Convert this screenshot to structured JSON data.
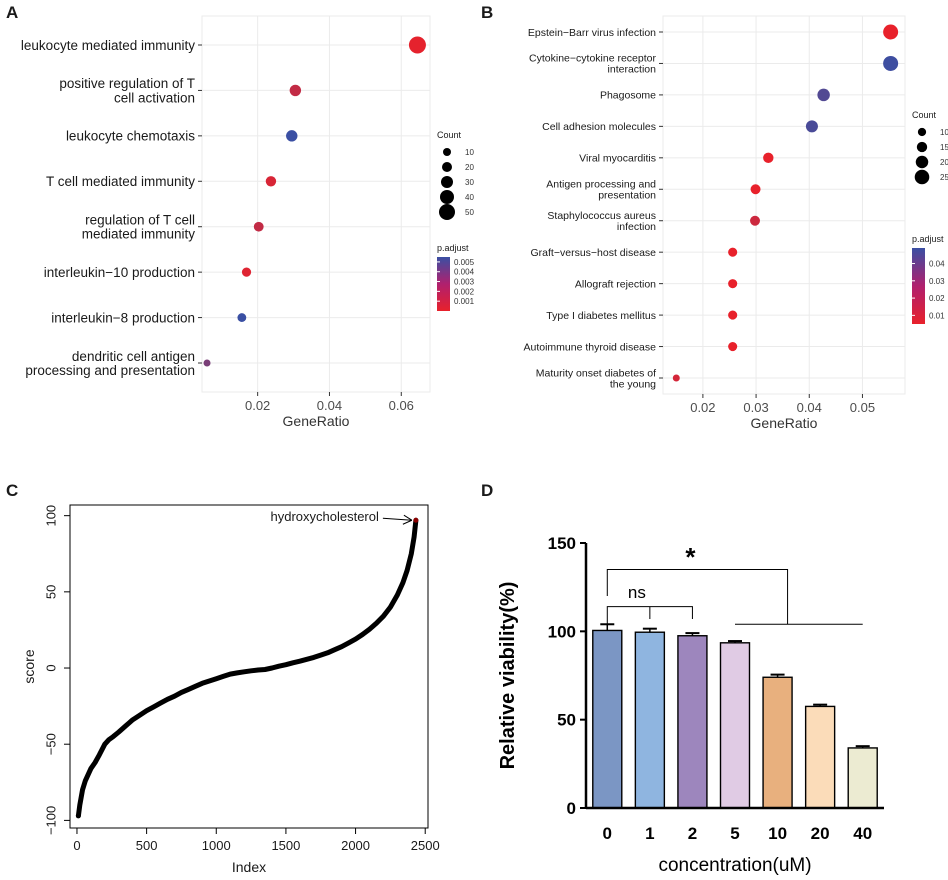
{
  "panels": {
    "A": {
      "label": "A"
    },
    "B": {
      "label": "B"
    },
    "C": {
      "label": "C"
    },
    "D": {
      "label": "D"
    }
  },
  "colors": {
    "grid": "#ebebeb",
    "low_padj": "#e8212b",
    "high_padj": "#3a4fa3",
    "text": "#1a1a1a",
    "bar_colors": [
      "#7b96c4",
      "#8fb5e0",
      "#9d86bd",
      "#e0cbe4",
      "#e8b07e",
      "#fbdcb9",
      "#ecebd2"
    ]
  },
  "chart_data": [
    {
      "panel": "A",
      "type": "scatter",
      "subtype": "dotplot",
      "xlabel": "GeneRatio",
      "xlim": [
        0.0045,
        0.068
      ],
      "xticks": [
        0.02,
        0.04,
        0.06
      ],
      "xtick_labels": [
        "0.02",
        "0.04",
        "0.06"
      ],
      "categories": [
        "leukocyte mediated immunity",
        "positive regulation of T cell activation",
        "leukocyte chemotaxis",
        "T cell mediated immunity",
        "regulation of T cell mediated immunity",
        "interleukin−10 production",
        "interleukin−8 production",
        "dendritic cell antigen processing and presentation"
      ],
      "category_lines": [
        [
          "leukocyte mediated immunity"
        ],
        [
          "positive regulation of T",
          "cell activation"
        ],
        [
          "leukocyte chemotaxis"
        ],
        [
          "T cell mediated immunity"
        ],
        [
          "regulation of T cell",
          "mediated immunity"
        ],
        [
          "interleukin−10 production"
        ],
        [
          "interleukin−8 production"
        ],
        [
          "dendritic cell antigen",
          "processing and presentation"
        ]
      ],
      "gene_ratio": [
        0.0645,
        0.0305,
        0.0295,
        0.0237,
        0.0203,
        0.0169,
        0.0156,
        0.0059
      ],
      "count": [
        55,
        27,
        27,
        22,
        19,
        16,
        14,
        5
      ],
      "p_adjust": [
        0.0001,
        0.0012,
        0.0055,
        0.0005,
        0.0012,
        0.0003,
        0.0055,
        0.0035
      ],
      "size_legend": {
        "title": "Count",
        "values": [
          10,
          20,
          30,
          40,
          50
        ],
        "labels": [
          "10",
          "20",
          "30",
          "40",
          "50"
        ]
      },
      "color_legend": {
        "title": "p.adjust",
        "range": [
          0.0,
          0.0055
        ],
        "values": [
          0.005,
          0.004,
          0.003,
          0.002,
          0.001
        ],
        "labels": [
          "0.005",
          "0.004",
          "0.003",
          "0.002",
          "0.001"
        ]
      }
    },
    {
      "panel": "B",
      "type": "scatter",
      "subtype": "dotplot",
      "xlabel": "GeneRatio",
      "xlim": [
        0.0125,
        0.058
      ],
      "xticks": [
        0.02,
        0.03,
        0.04,
        0.05
      ],
      "xtick_labels": [
        "0.02",
        "0.03",
        "0.04",
        "0.05"
      ],
      "categories": [
        "Epstein−Barr virus infection",
        "Cytokine−cytokine receptor interaction",
        "Phagosome",
        "Cell adhesion molecules",
        "Viral myocarditis",
        "Antigen processing and presentation",
        "Staphylococcus aureus infection",
        "Graft−versus−host disease",
        "Allograft rejection",
        "Type I diabetes mellitus",
        "Autoimmune thyroid disease",
        "Maturity onset diabetes of the young"
      ],
      "category_lines": [
        [
          "Epstein−Barr virus infection"
        ],
        [
          "Cytokine−cytokine receptor",
          "interaction"
        ],
        [
          "Phagosome"
        ],
        [
          "Cell adhesion molecules"
        ],
        [
          "Viral myocarditis"
        ],
        [
          "Antigen processing and",
          "presentation"
        ],
        [
          "Staphylococcus aureus",
          "infection"
        ],
        [
          "Graft−versus−host disease"
        ],
        [
          "Allograft rejection"
        ],
        [
          "Type I diabetes mellitus"
        ],
        [
          "Autoimmune thyroid disease"
        ],
        [
          "Maturity onset diabetes of",
          "the young"
        ]
      ],
      "gene_ratio": [
        0.0553,
        0.0553,
        0.0427,
        0.0405,
        0.0323,
        0.0299,
        0.0298,
        0.0256,
        0.0256,
        0.0256,
        0.0256,
        0.015
      ],
      "count": [
        26,
        26,
        20,
        19,
        15,
        14,
        14,
        12,
        12,
        12,
        12,
        7
      ],
      "p_adjust": [
        0.002,
        0.048,
        0.043,
        0.045,
        0.004,
        0.003,
        0.012,
        0.001,
        0.001,
        0.001,
        0.002,
        0.01
      ],
      "size_legend": {
        "title": "Count",
        "values": [
          10,
          15,
          20,
          25
        ],
        "labels": [
          "10",
          "15",
          "20",
          "25"
        ]
      },
      "color_legend": {
        "title": "p.adjust",
        "range": [
          0.005,
          0.049
        ],
        "values": [
          0.04,
          0.03,
          0.02,
          0.01
        ],
        "labels": [
          "0.04",
          "0.03",
          "0.02",
          "0.01"
        ]
      }
    },
    {
      "panel": "C",
      "type": "line",
      "xlabel": "Index",
      "ylabel": "score",
      "xlim": [
        -50,
        2520
      ],
      "ylim": [
        -105,
        107
      ],
      "xticks": [
        0,
        500,
        1000,
        1500,
        2000,
        2500
      ],
      "xtick_labels": [
        "0",
        "500",
        "1000",
        "1500",
        "2000",
        "2500"
      ],
      "yticks": [
        -100,
        -50,
        0,
        50,
        100
      ],
      "ytick_labels": [
        "−100",
        "−50",
        "0",
        "50",
        "100"
      ],
      "x": [
        10,
        20,
        40,
        60,
        80,
        100,
        130,
        160,
        200,
        230,
        260,
        300,
        350,
        400,
        450,
        500,
        550,
        600,
        650,
        700,
        750,
        800,
        850,
        900,
        950,
        1000,
        1050,
        1100,
        1150,
        1200,
        1250,
        1300,
        1350,
        1400,
        1450,
        1500,
        1550,
        1600,
        1650,
        1700,
        1750,
        1800,
        1850,
        1900,
        1950,
        2000,
        2050,
        2100,
        2150,
        2200,
        2250,
        2300,
        2340,
        2370,
        2400,
        2420,
        2433
      ],
      "y": [
        -97,
        -90,
        -80,
        -74,
        -70,
        -66,
        -62,
        -57,
        -50,
        -47,
        -45,
        -42,
        -38,
        -34,
        -31,
        -28,
        -25.5,
        -23,
        -20.5,
        -18.5,
        -16,
        -14,
        -12,
        -10,
        -8.5,
        -7,
        -5.5,
        -4,
        -3.2,
        -2.5,
        -1.8,
        -1.3,
        -1,
        0,
        1.2,
        2.2,
        3.4,
        4.5,
        5.7,
        7,
        8.5,
        10,
        12,
        14,
        16.5,
        19,
        22,
        25.5,
        29.5,
        34,
        40,
        48,
        56,
        64,
        75,
        86,
        97
      ],
      "annotation": {
        "text": "hydroxycholesterol",
        "x": 2433,
        "y": 97
      }
    },
    {
      "panel": "D",
      "type": "bar",
      "xlabel": "concentration(uM)",
      "ylabel": "Relative viability(%)",
      "ylim": [
        0,
        150
      ],
      "yticks": [
        0,
        50,
        100,
        150
      ],
      "ytick_labels": [
        "0",
        "50",
        "100",
        "150"
      ],
      "categories": [
        "0",
        "1",
        "2",
        "5",
        "10",
        "20",
        "40"
      ],
      "values": [
        100.5,
        99.5,
        97.5,
        93.5,
        74,
        57.5,
        34
      ],
      "errors": [
        3.5,
        2,
        1.5,
        1,
        1.5,
        1,
        1
      ],
      "annotations": {
        "ns": "ns",
        "star": "*"
      }
    }
  ]
}
